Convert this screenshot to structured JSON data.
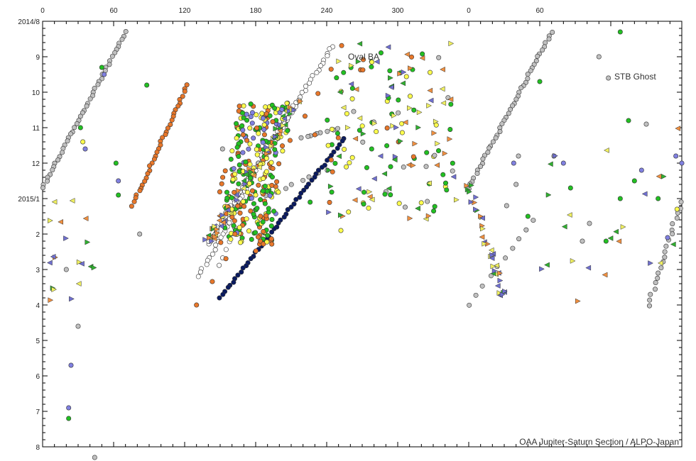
{
  "chart_data": {
    "type": "scatter",
    "title": "",
    "xlabel": "",
    "ylabel": "",
    "x_axis": {
      "position": "top",
      "range_deg": [
        0,
        540
      ],
      "wraps_at": 360,
      "tick_labels": [
        "0",
        "60",
        "120",
        "180",
        "240",
        "300",
        "0",
        "60"
      ]
    },
    "y_axis": {
      "direction": "down",
      "range": [
        "2014-08-01",
        "2015-08-01"
      ],
      "tick_labels": [
        "2014/8",
        "9",
        "10",
        "11",
        "12",
        "2015/1",
        "2",
        "3",
        "4",
        "5",
        "6",
        "7",
        "8"
      ]
    },
    "annotations": [
      "Oval BA",
      "STB Ghost"
    ],
    "credit": "OAA Jupiter-Saturn Section / ALPO-Japan",
    "marker_colors": {
      "gray_dot": "#c0c0c0",
      "white_dot": "#ffffff",
      "orange_dot": "#e8772a",
      "yellow_dot": "#ffff4d",
      "green_dot": "#22c022",
      "blue_dot": "#8080e0",
      "navy_dot": "#0a1a60",
      "orange_triangle": "#f09040",
      "green_triangle": "#30b030",
      "yellow_triangle": "#f0f060",
      "blue_triangle": "#7070d0"
    },
    "grid": false,
    "series": [
      {
        "name": "Oval BA",
        "marker": "white_dot",
        "points": [
          [
            195,
            5.0
          ],
          [
            198,
            4.7
          ],
          [
            201,
            4.4
          ],
          [
            204,
            4.1
          ],
          [
            207,
            3.8
          ],
          [
            210,
            3.5
          ],
          [
            213,
            3.2
          ],
          [
            216,
            2.9
          ],
          [
            219,
            2.6
          ],
          [
            222,
            2.3
          ],
          [
            225,
            2.0
          ],
          [
            228,
            1.7
          ],
          [
            231,
            1.4
          ],
          [
            234,
            1.1
          ],
          [
            237,
            0.8
          ],
          [
            240,
            0.5
          ],
          [
            243,
            0.3
          ]
        ]
      },
      {
        "name": "STB Ghost",
        "marker": "gray_dot",
        "points": [
          [
            2,
            4.7
          ],
          [
            6,
            4.4
          ],
          [
            10,
            4.1
          ],
          [
            14,
            3.8
          ],
          [
            18,
            3.5
          ],
          [
            22,
            3.2
          ],
          [
            26,
            2.9
          ],
          [
            30,
            2.6
          ],
          [
            34,
            2.3
          ],
          [
            38,
            2.0
          ],
          [
            42,
            1.7
          ],
          [
            46,
            1.4
          ],
          [
            50,
            1.1
          ],
          [
            54,
            0.8
          ],
          [
            58,
            0.5
          ],
          [
            62,
            0.3
          ]
        ]
      }
    ]
  }
}
